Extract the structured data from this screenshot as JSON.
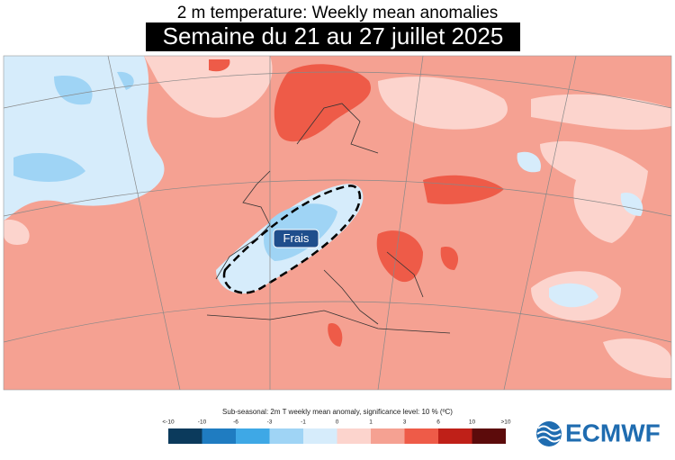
{
  "header": {
    "title": "2 m temperature: Weekly mean anomalies",
    "subtitle": "Semaine du 21 au 27 juillet 2025"
  },
  "map": {
    "annotation": "Frais"
  },
  "legend": {
    "caption": "Sub-seasonal: 2m T weekly mean anomaly, significance level: 10 % (ºC)",
    "ticks": [
      "<-10",
      "-10",
      "-6",
      "-3",
      "-1",
      "0",
      "1",
      "3",
      "6",
      "10",
      ">10"
    ],
    "colors": [
      "#0b3a5c",
      "#1f7cc1",
      "#3ea8e6",
      "#9fd4f5",
      "#d6ecfb",
      "#fcd4cd",
      "#f5a192",
      "#ee5b48",
      "#bf2018",
      "#5c0b0b"
    ]
  },
  "logo": {
    "text": "ECMWF"
  }
}
